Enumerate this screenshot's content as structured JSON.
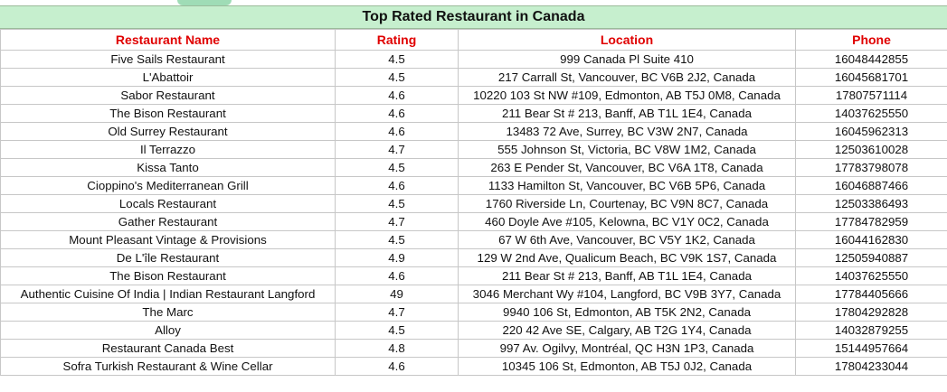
{
  "title": "Top Rated Restaurant in Canada",
  "colors": {
    "title_bg": "#c6efce",
    "header_text": "#e00000"
  },
  "columns": [
    "Restaurant Name",
    "Rating",
    "Location",
    "Phone"
  ],
  "rows": [
    [
      "Five Sails Restaurant",
      "4.5",
      "999 Canada Pl Suite 410",
      "16048442855"
    ],
    [
      "L'Abattoir",
      "4.5",
      "217 Carrall St, Vancouver, BC V6B 2J2, Canada",
      "16045681701"
    ],
    [
      "Sabor Restaurant",
      "4.6",
      "10220 103 St NW #109, Edmonton, AB T5J 0M8, Canada",
      "17807571114"
    ],
    [
      "The Bison Restaurant",
      "4.6",
      "211 Bear St # 213, Banff, AB T1L 1E4, Canada",
      "14037625550"
    ],
    [
      "Old Surrey Restaurant",
      "4.6",
      "13483 72 Ave, Surrey, BC V3W 2N7, Canada",
      "16045962313"
    ],
    [
      "Il Terrazzo",
      "4.7",
      "555 Johnson St, Victoria, BC V8W 1M2, Canada",
      "12503610028"
    ],
    [
      "Kissa Tanto",
      "4.5",
      "263 E Pender St, Vancouver, BC V6A 1T8, Canada",
      "17783798078"
    ],
    [
      "Cioppino's Mediterranean Grill",
      "4.6",
      "1133 Hamilton St, Vancouver, BC V6B 5P6, Canada",
      "16046887466"
    ],
    [
      "Locals Restaurant",
      "4.5",
      "1760 Riverside Ln, Courtenay, BC V9N 8C7, Canada",
      "12503386493"
    ],
    [
      "Gather Restaurant",
      "4.7",
      "460 Doyle Ave #105, Kelowna, BC V1Y 0C2, Canada",
      "17784782959"
    ],
    [
      "Mount Pleasant Vintage & Provisions",
      "4.5",
      "67 W 6th Ave, Vancouver, BC V5Y 1K2, Canada",
      "16044162830"
    ],
    [
      "De L'île Restaurant",
      "4.9",
      "129 W 2nd Ave, Qualicum Beach, BC V9K 1S7, Canada",
      "12505940887"
    ],
    [
      "The Bison Restaurant",
      "4.6",
      "211 Bear St # 213, Banff, AB T1L 1E4, Canada",
      "14037625550"
    ],
    [
      "Authentic Cuisine Of India | Indian Restaurant Langford",
      "49",
      "3046 Merchant Wy #104, Langford, BC V9B 3Y7, Canada",
      "17784405666"
    ],
    [
      "The Marc",
      "4.7",
      "9940 106 St, Edmonton, AB T5K 2N2, Canada",
      "17804292828"
    ],
    [
      "Alloy",
      "4.5",
      "220 42 Ave SE, Calgary, AB T2G 1Y4, Canada",
      "14032879255"
    ],
    [
      "Restaurant Canada Best",
      "4.8",
      "997 Av. Ogilvy, Montréal, QC H3N 1P3, Canada",
      "15144957664"
    ],
    [
      "Sofra Turkish Restaurant & Wine Cellar",
      "4.6",
      "10345 106 St, Edmonton, AB T5J 0J2, Canada",
      "17804233044"
    ]
  ]
}
